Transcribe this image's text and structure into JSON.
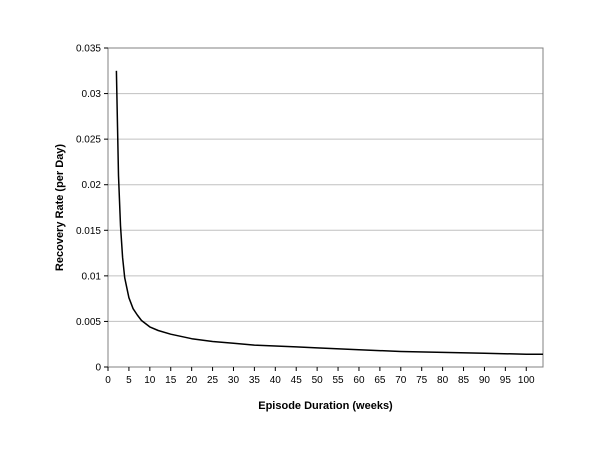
{
  "chart_data": {
    "type": "line",
    "title": "",
    "xlabel": "Episode Duration (weeks)",
    "ylabel": "Recovery Rate (per Day)",
    "xlim": [
      0,
      104
    ],
    "ylim": [
      0,
      0.035
    ],
    "x_ticks": [
      "0",
      "5",
      "10",
      "15",
      "20",
      "25",
      "30",
      "35",
      "40",
      "45",
      "50",
      "55",
      "60",
      "65",
      "70",
      "75",
      "80",
      "85",
      "90",
      "95",
      "100"
    ],
    "y_ticks": [
      "0",
      "0.005",
      "0.01",
      "0.015",
      "0.02",
      "0.025",
      "0.03",
      "0.035"
    ],
    "grid": {
      "horizontal": true,
      "vertical": false
    },
    "legend": "none",
    "colors": {
      "line": "#000000",
      "grid": "#c0c0c0",
      "plot_border": "#808080"
    },
    "series": [
      {
        "x": [
          2,
          2.5,
          3,
          3.5,
          4,
          5,
          6,
          7,
          8,
          10,
          12,
          15,
          20,
          25,
          30,
          35,
          40,
          45,
          50,
          60,
          70,
          80,
          90,
          100,
          104
        ],
        "y": [
          0.0325,
          0.021,
          0.0155,
          0.012,
          0.0098,
          0.0076,
          0.0064,
          0.0057,
          0.0051,
          0.0044,
          0.004,
          0.0036,
          0.0031,
          0.0028,
          0.0026,
          0.0024,
          0.0023,
          0.0022,
          0.0021,
          0.0019,
          0.0017,
          0.0016,
          0.0015,
          0.0014,
          0.0014
        ]
      }
    ]
  }
}
